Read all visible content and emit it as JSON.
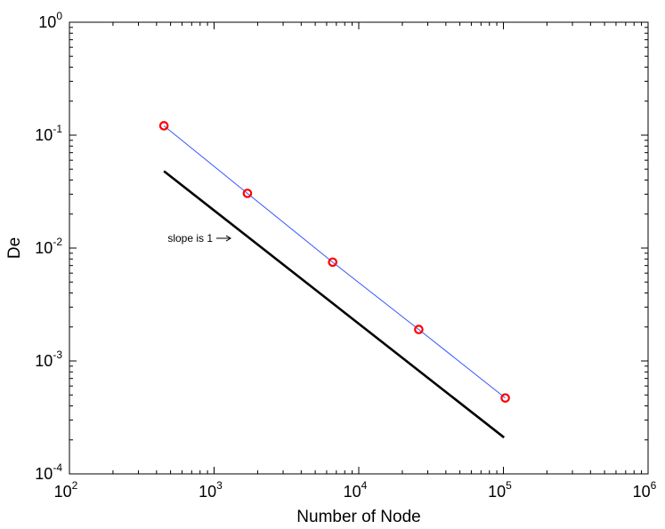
{
  "chart_data": {
    "type": "line",
    "xscale": "log",
    "yscale": "log",
    "xlim": [
      100,
      1000000
    ],
    "ylim": [
      0.0001,
      1
    ],
    "xlabel": "Number of Node",
    "ylabel": "De",
    "x_ticks": [
      {
        "value": 100,
        "base": "10",
        "exp": "2"
      },
      {
        "value": 1000,
        "base": "10",
        "exp": "3"
      },
      {
        "value": 10000,
        "base": "10",
        "exp": "4"
      },
      {
        "value": 100000,
        "base": "10",
        "exp": "5"
      },
      {
        "value": 1000000,
        "base": "10",
        "exp": "6"
      }
    ],
    "y_ticks": [
      {
        "value": 0.0001,
        "base": "10",
        "exp": "-4"
      },
      {
        "value": 0.001,
        "base": "10",
        "exp": "-3"
      },
      {
        "value": 0.01,
        "base": "10",
        "exp": "-2"
      },
      {
        "value": 0.1,
        "base": "10",
        "exp": "-1"
      },
      {
        "value": 1,
        "base": "10",
        "exp": "0"
      }
    ],
    "grid": false,
    "series": [
      {
        "style": "line-with-circle-markers",
        "line_color": "#3355ff",
        "marker_color": "#ff0000",
        "x": [
          450,
          1700,
          6600,
          26000,
          103000
        ],
        "y": [
          0.121,
          0.0305,
          0.0075,
          0.0019,
          0.00047
        ]
      },
      {
        "style": "thick-line",
        "line_color": "#000000",
        "x": [
          450,
          101000
        ],
        "y": [
          0.048,
          0.00021
        ]
      }
    ],
    "annotations": [
      {
        "text": "slope is 1",
        "arrow": "right",
        "x": 1300,
        "y": 0.0122
      }
    ]
  }
}
